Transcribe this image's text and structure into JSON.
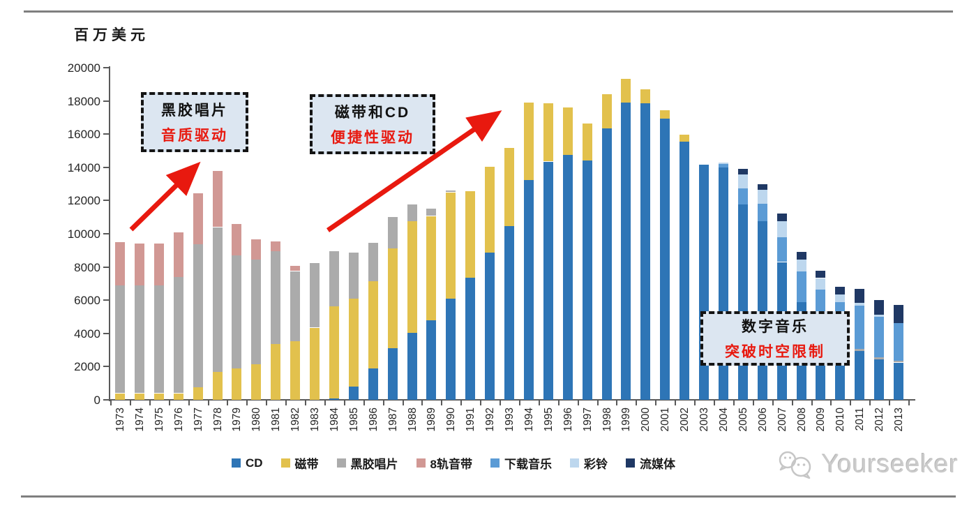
{
  "page": {
    "unit_label": "百万美元",
    "watermark_text": "Yourseeker"
  },
  "annotations": [
    {
      "line1": "黑胶唱片",
      "line2": "音质驱动"
    },
    {
      "line1": "磁带和CD",
      "line2": "便捷性驱动"
    },
    {
      "line1": "数字音乐",
      "line2": "突破时空限制"
    }
  ],
  "colors": {
    "cd": "#2e75b6",
    "cassette": "#e2c14d",
    "vinyl": "#ababab",
    "eight_track": "#d19894",
    "download": "#5b9bd5",
    "ringtone": "#bdd7ee",
    "streaming": "#1f3864",
    "arrow_red": "#e8190f",
    "annotation_bg": "#dce6f1",
    "axis": "#595959"
  },
  "chart_data": {
    "type": "bar",
    "stacked": true,
    "title": "",
    "xlabel": "",
    "ylabel": "百万美元",
    "ylim": [
      0,
      20000
    ],
    "ytick_step": 2000,
    "grid": false,
    "legend_position": "bottom",
    "categories": [
      "1973",
      "1974",
      "1975",
      "1976",
      "1977",
      "1978",
      "1979",
      "1980",
      "1981",
      "1982",
      "1983",
      "1984",
      "1985",
      "1986",
      "1987",
      "1988",
      "1989",
      "1990",
      "1991",
      "1992",
      "1993",
      "1994",
      "1995",
      "1996",
      "1997",
      "1998",
      "1999",
      "2000",
      "2001",
      "2002",
      "2003",
      "2004",
      "2005",
      "2006",
      "2007",
      "2008",
      "2009",
      "2010",
      "2011",
      "2012",
      "2013"
    ],
    "series": [
      {
        "name": "CD",
        "color": "#2e75b6",
        "values": [
          0,
          0,
          0,
          0,
          0,
          0,
          0,
          0,
          0,
          0,
          0,
          100,
          800,
          1900,
          3100,
          4050,
          4800,
          6100,
          7350,
          8850,
          10450,
          13250,
          14350,
          14750,
          14400,
          16350,
          17900,
          17850,
          16950,
          15550,
          14150,
          14000,
          11750,
          10750,
          8300,
          5900,
          4350,
          3400,
          2950,
          2450,
          2250
        ]
      },
      {
        "name": "磁带",
        "color": "#e2c14d",
        "values": [
          400,
          400,
          400,
          400,
          760,
          1700,
          1900,
          2150,
          3350,
          3550,
          4350,
          5550,
          5300,
          5250,
          6000,
          6700,
          6270,
          6400,
          5200,
          5200,
          4700,
          4650,
          3500,
          2850,
          2250,
          2050,
          1450,
          850,
          500,
          400,
          0,
          0,
          0,
          0,
          0,
          0,
          0,
          0,
          0,
          0,
          0
        ]
      },
      {
        "name": "黑胶唱片",
        "color": "#ababab",
        "values": [
          6500,
          6500,
          6500,
          7000,
          8600,
          8700,
          6800,
          6300,
          5600,
          4200,
          3900,
          3300,
          2750,
          2300,
          1900,
          1000,
          460,
          100,
          0,
          0,
          0,
          0,
          0,
          0,
          0,
          0,
          0,
          0,
          0,
          0,
          0,
          0,
          0,
          0,
          0,
          0,
          0,
          0,
          130,
          110,
          110
        ]
      },
      {
        "name": "8轨音带",
        "color": "#d19894",
        "values": [
          2600,
          2500,
          2500,
          2700,
          3100,
          3400,
          1900,
          1200,
          600,
          300,
          0,
          0,
          0,
          0,
          0,
          0,
          0,
          0,
          0,
          0,
          0,
          0,
          0,
          0,
          0,
          0,
          0,
          0,
          0,
          0,
          0,
          0,
          0,
          0,
          0,
          0,
          0,
          0,
          0,
          0,
          0
        ]
      },
      {
        "name": "下载音乐",
        "color": "#5b9bd5",
        "values": [
          0,
          0,
          0,
          0,
          0,
          0,
          0,
          0,
          0,
          0,
          0,
          0,
          0,
          0,
          0,
          0,
          0,
          0,
          0,
          0,
          0,
          0,
          0,
          0,
          0,
          0,
          0,
          0,
          0,
          0,
          0,
          200,
          1000,
          1050,
          1500,
          1850,
          2300,
          2500,
          2600,
          2450,
          2250
        ]
      },
      {
        "name": "彩铃",
        "color": "#bdd7ee",
        "values": [
          0,
          0,
          0,
          0,
          0,
          0,
          0,
          0,
          0,
          0,
          0,
          0,
          0,
          0,
          0,
          0,
          0,
          0,
          0,
          0,
          0,
          0,
          0,
          0,
          0,
          0,
          0,
          0,
          0,
          0,
          0,
          100,
          840,
          840,
          950,
          700,
          680,
          450,
          150,
          100,
          0
        ]
      },
      {
        "name": "流媒体",
        "color": "#1f3864",
        "values": [
          0,
          0,
          0,
          0,
          0,
          0,
          0,
          0,
          0,
          0,
          0,
          0,
          0,
          0,
          0,
          0,
          0,
          0,
          0,
          0,
          0,
          0,
          0,
          0,
          0,
          0,
          0,
          0,
          0,
          0,
          0,
          0,
          330,
          350,
          450,
          450,
          450,
          450,
          850,
          900,
          1090
        ]
      }
    ]
  }
}
